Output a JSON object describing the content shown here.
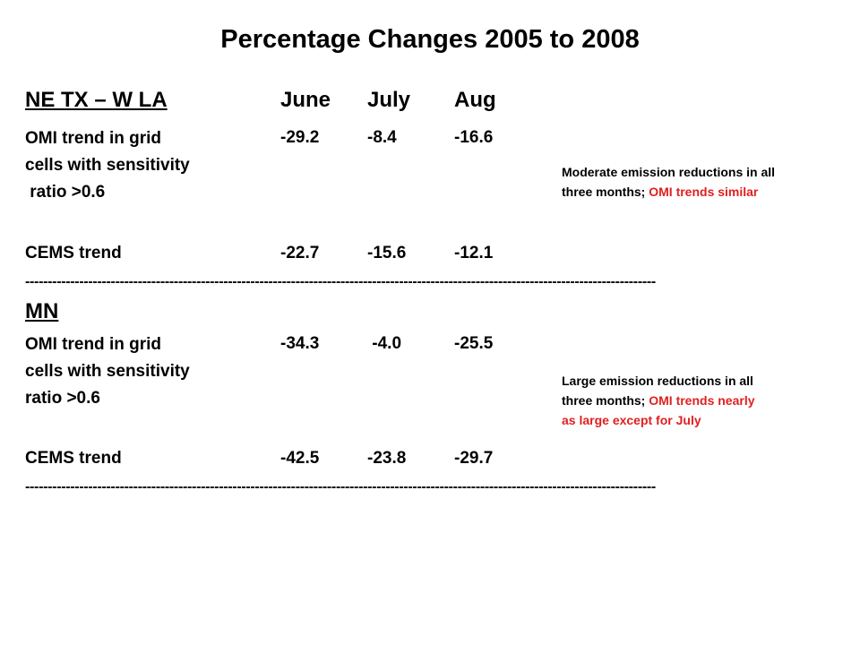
{
  "title": "Percentage Changes 2005 to 2008",
  "months": [
    "June",
    "July",
    "Aug"
  ],
  "sections": [
    {
      "region": "NE TX – W LA",
      "omi_label": [
        "OMI trend in grid",
        "cells with sensitivity",
        " ratio >0.6"
      ],
      "omi_values": [
        "-29.2",
        "-8.4",
        "-16.6"
      ],
      "cems_label": "CEMS trend",
      "cems_values": [
        "-22.7",
        "-15.6",
        "-12.1"
      ],
      "note_line1": "Moderate emission reductions in all",
      "note_line2_black": "three months; ",
      "note_line2_red": "OMI trends similar",
      "note_line3_red": ""
    },
    {
      "region": "MN",
      "omi_label": [
        "OMI trend in grid",
        "cells with sensitivity",
        "ratio >0.6"
      ],
      "omi_values": [
        "-34.3",
        " -4.0",
        "-25.5"
      ],
      "cems_label": "CEMS trend",
      "cems_values": [
        "-42.5",
        "-23.8",
        "-29.7"
      ],
      "note_line1": "Large emission reductions in all",
      "note_line2_black": "three months; ",
      "note_line2_red": "OMI trends nearly",
      "note_line3_red": "as large except for July"
    }
  ],
  "separator": "--------------------------------------------------------------------------------------------------------------------------------------------",
  "colors": {
    "text": "#000000",
    "accent_red": "#e02020",
    "background": "#ffffff"
  }
}
